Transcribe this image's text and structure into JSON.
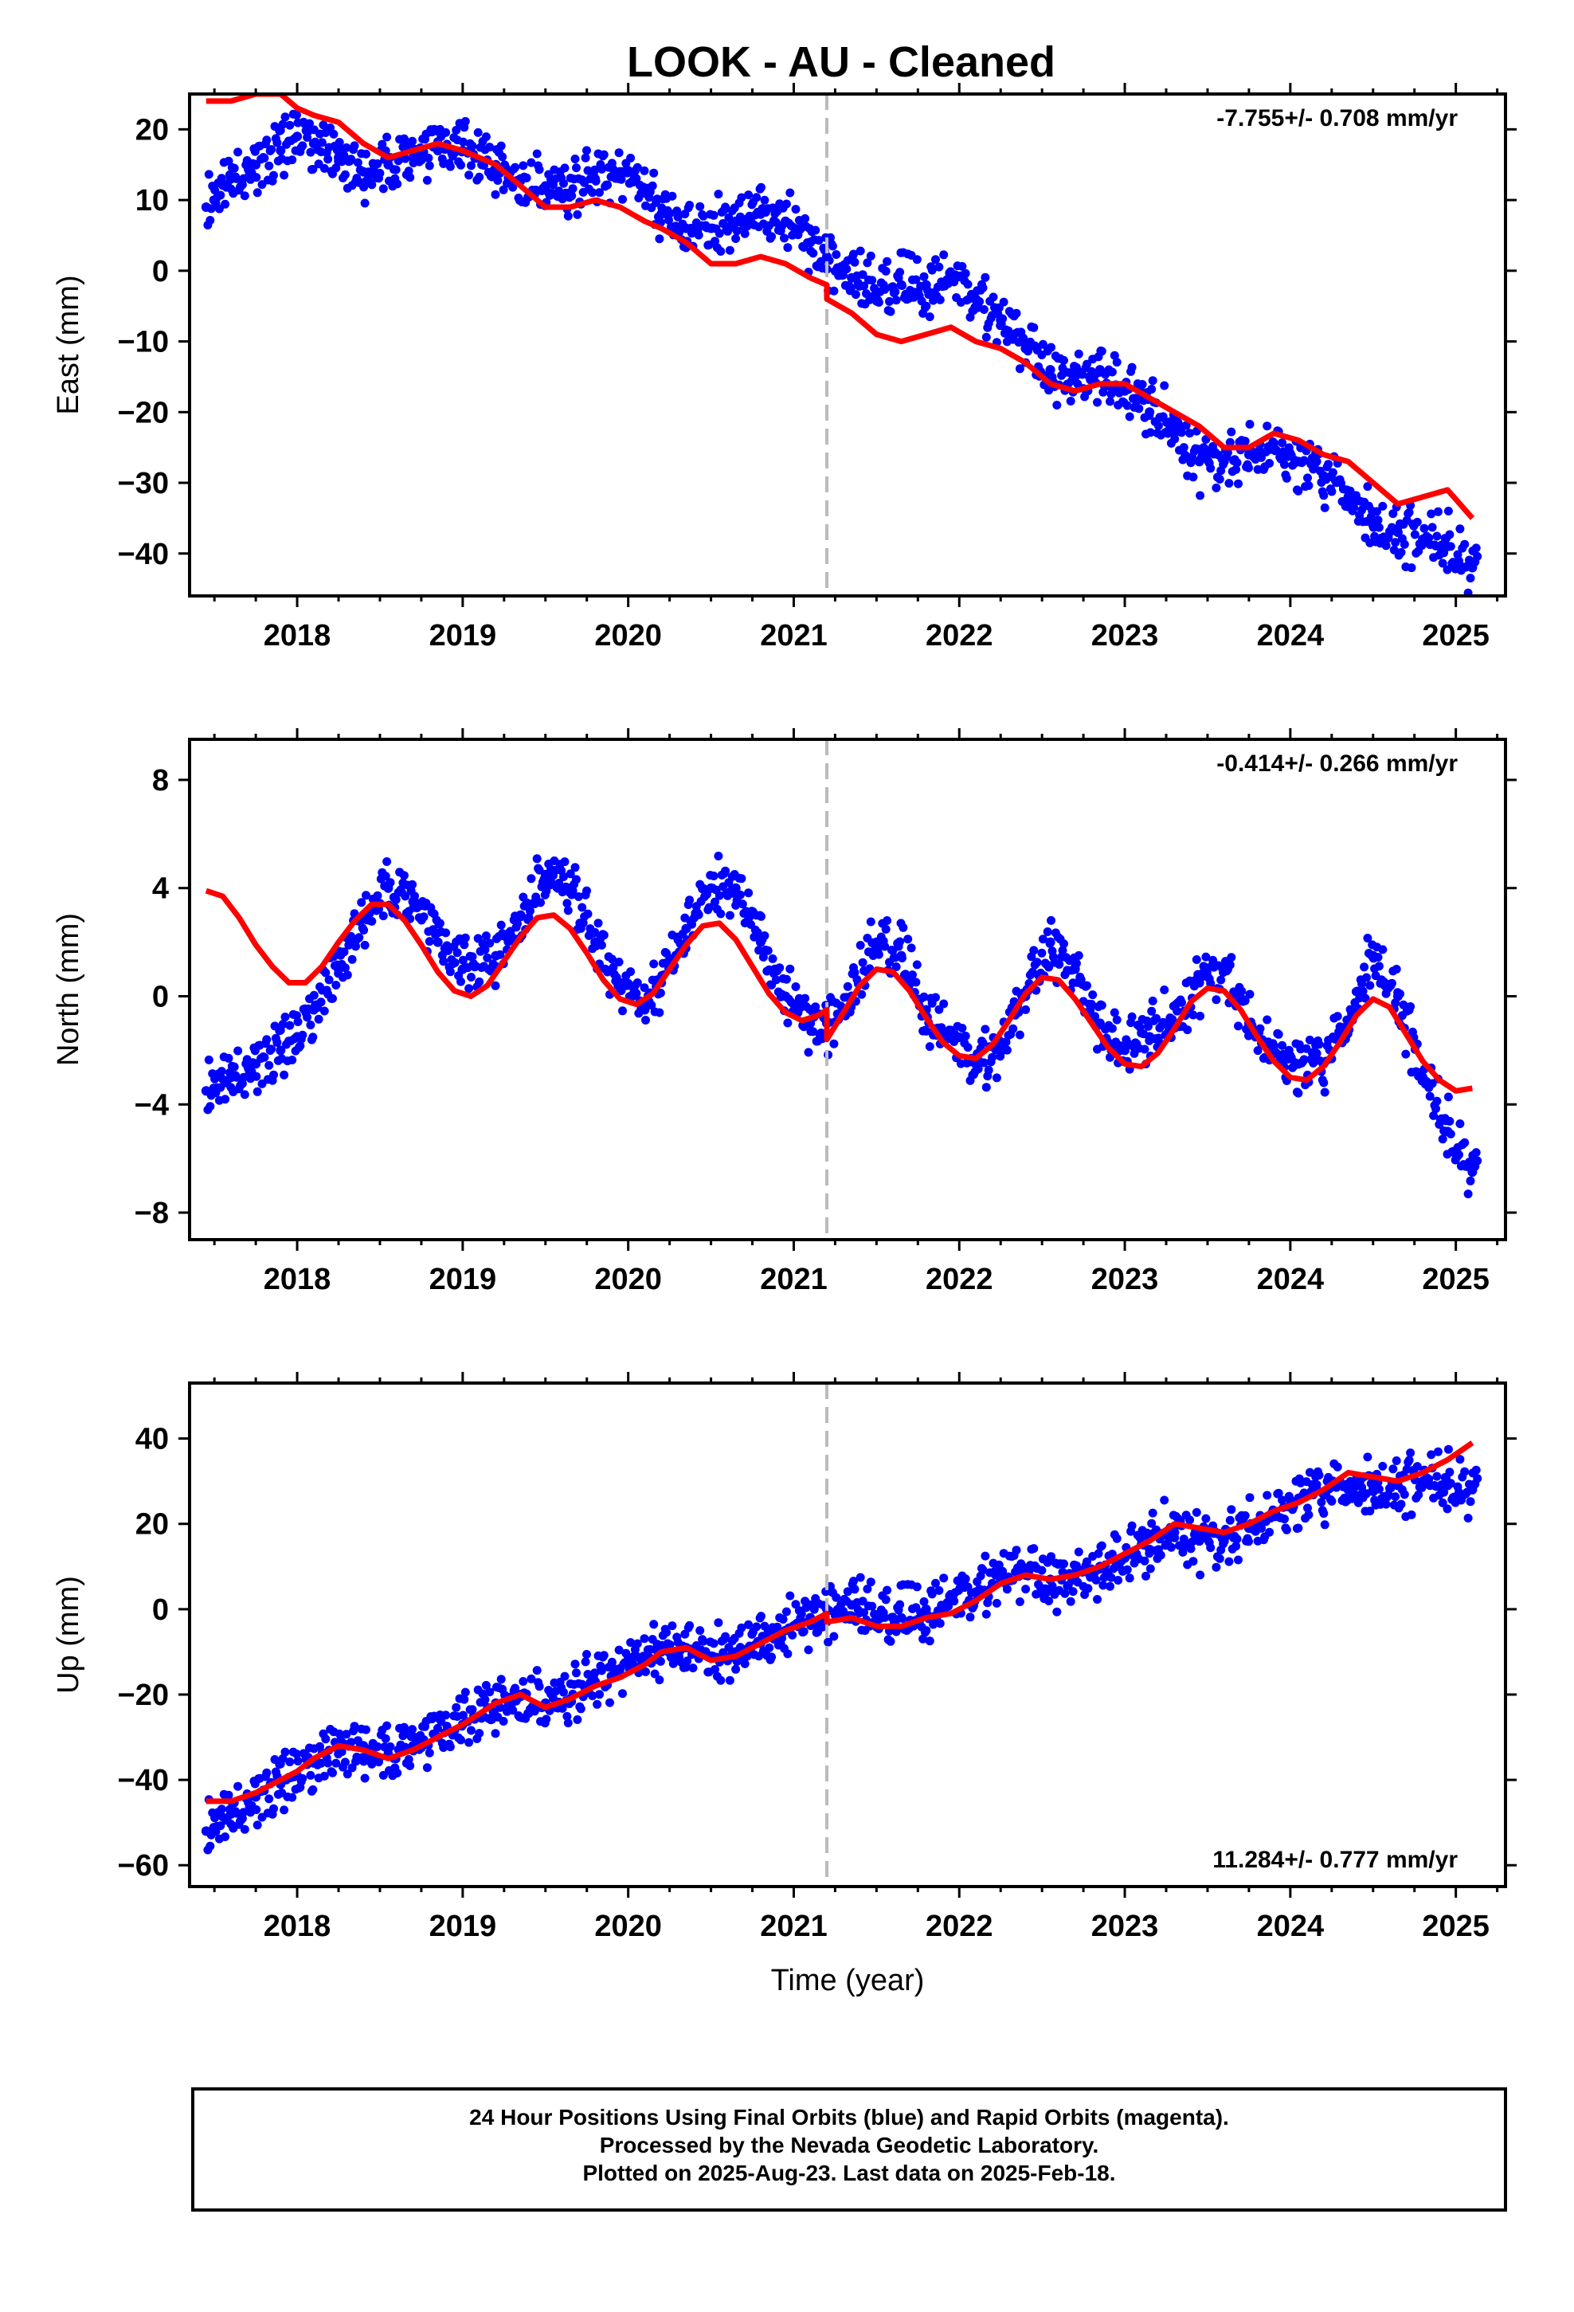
{
  "title": "LOOK  - AU - Cleaned",
  "colors": {
    "data": "#0000ff",
    "model": "#ff0000",
    "break_line": "#bbbbbb",
    "frame": "#000000"
  },
  "chart_data": [
    {
      "type": "scatter",
      "id": "east",
      "ylabel": "East (mm)",
      "xlabel": "",
      "xlim": [
        2017.35,
        2025.3
      ],
      "ylim": [
        -46,
        25
      ],
      "yticks": [
        20,
        10,
        0,
        -10,
        -20,
        -30,
        -40
      ],
      "xticks": [
        2018,
        2019,
        2020,
        2021,
        2022,
        2023,
        2024,
        2025
      ],
      "rate_label": "-7.755+/- 0.708 mm/yr",
      "rate_position": "top-right",
      "break_epoch": 2021.2,
      "series": [
        {
          "role": "data",
          "kind": "points",
          "x": [
            2017.45,
            2017.6,
            2017.75,
            2017.9,
            2018.0,
            2018.1,
            2018.25,
            2018.4,
            2018.55,
            2018.7,
            2018.85,
            2019.0,
            2019.2,
            2019.35,
            2019.5,
            2019.65,
            2019.8,
            2019.95,
            2020.1,
            2020.2,
            2020.35,
            2020.5,
            2020.65,
            2020.8,
            2020.95,
            2021.1,
            2021.2,
            2021.35,
            2021.5,
            2021.65,
            2021.8,
            2021.95,
            2022.1,
            2022.25,
            2022.4,
            2022.55,
            2022.7,
            2022.85,
            2023.0,
            2023.15,
            2023.3,
            2023.45,
            2023.6,
            2023.75,
            2023.9,
            2024.05,
            2024.2,
            2024.35,
            2024.5,
            2024.65,
            2024.8,
            2024.95,
            2025.1
          ],
          "y": [
            9,
            13,
            15,
            17,
            19,
            18,
            16,
            14,
            15,
            16,
            17,
            17,
            15,
            13,
            12,
            11,
            13,
            14,
            11,
            8,
            6,
            6,
            7,
            8,
            7,
            4,
            2,
            -1,
            -3,
            -2,
            -2,
            -1,
            -4,
            -7,
            -11,
            -14,
            -15,
            -14,
            -17,
            -20,
            -23,
            -27,
            -27,
            -26,
            -25,
            -27,
            -29,
            -32,
            -36,
            -37,
            -38,
            -39,
            -42
          ]
        },
        {
          "role": "model",
          "kind": "line",
          "x": [
            2017.45,
            2017.6,
            2017.75,
            2017.9,
            2018.0,
            2018.1,
            2018.25,
            2018.4,
            2018.55,
            2018.7,
            2018.85,
            2019.0,
            2019.2,
            2019.35,
            2019.5,
            2019.65,
            2019.8,
            2019.95,
            2020.1,
            2020.2,
            2020.35,
            2020.5,
            2020.65,
            2020.8,
            2020.95,
            2021.1,
            2021.2,
            2021.2,
            2021.35,
            2021.5,
            2021.65,
            2021.8,
            2021.95,
            2022.1,
            2022.25,
            2022.4,
            2022.55,
            2022.7,
            2022.85,
            2023.0,
            2023.15,
            2023.3,
            2023.45,
            2023.6,
            2023.75,
            2023.9,
            2024.05,
            2024.2,
            2024.35,
            2024.5,
            2024.65,
            2024.8,
            2024.95,
            2025.1
          ],
          "y": [
            24,
            24,
            25,
            25,
            23,
            22,
            21,
            18,
            16,
            17,
            18,
            17,
            15,
            12,
            9,
            9,
            10,
            9,
            7,
            6,
            4,
            1,
            1,
            2,
            1,
            -1,
            -2,
            -4,
            -6,
            -9,
            -10,
            -9,
            -8,
            -10,
            -11,
            -13,
            -16,
            -17,
            -16,
            -16,
            -18,
            -20,
            -22,
            -25,
            -25,
            -23,
            -24,
            -26,
            -27,
            -30,
            -33,
            -32,
            -31,
            -35
          ]
        }
      ]
    },
    {
      "type": "scatter",
      "id": "north",
      "ylabel": "North (mm)",
      "xlabel": "",
      "xlim": [
        2017.35,
        2025.3
      ],
      "ylim": [
        -9,
        9.5
      ],
      "yticks": [
        8,
        4,
        0,
        -4,
        -8
      ],
      "xticks": [
        2018,
        2019,
        2020,
        2021,
        2022,
        2023,
        2024,
        2025
      ],
      "rate_label": "-0.414+/- 0.266 mm/yr",
      "rate_position": "top-right",
      "break_epoch": 2021.2,
      "series": [
        {
          "role": "data",
          "kind": "points",
          "x": [
            2017.45,
            2017.6,
            2017.75,
            2017.9,
            2018.0,
            2018.1,
            2018.25,
            2018.4,
            2018.55,
            2018.7,
            2018.85,
            2019.0,
            2019.2,
            2019.35,
            2019.5,
            2019.65,
            2019.8,
            2019.95,
            2020.1,
            2020.2,
            2020.35,
            2020.5,
            2020.65,
            2020.8,
            2020.95,
            2021.1,
            2021.2,
            2021.35,
            2021.5,
            2021.65,
            2021.8,
            2021.95,
            2022.1,
            2022.25,
            2022.4,
            2022.55,
            2022.7,
            2022.85,
            2023.0,
            2023.15,
            2023.3,
            2023.45,
            2023.6,
            2023.75,
            2023.9,
            2024.05,
            2024.2,
            2024.35,
            2024.5,
            2024.65,
            2024.8,
            2024.95,
            2025.1
          ],
          "y": [
            -3.5,
            -3,
            -2.5,
            -2,
            -1.5,
            -0.5,
            1,
            3,
            4,
            3.5,
            2,
            1,
            1.5,
            3,
            4.5,
            4,
            2,
            0.5,
            -0.5,
            0.5,
            2.5,
            4,
            4,
            2,
            0,
            -1,
            -1,
            0,
            2,
            1.5,
            -0.5,
            -1.5,
            -2.5,
            -2,
            0,
            2,
            1,
            -1,
            -2,
            -1.5,
            -1,
            0.5,
            1,
            -1,
            -2,
            -2.5,
            -2.5,
            -1,
            1.5,
            0,
            -3,
            -5,
            -6.5
          ]
        },
        {
          "role": "model",
          "kind": "line",
          "x": [
            2017.45,
            2017.55,
            2017.65,
            2017.75,
            2017.85,
            2017.95,
            2018.05,
            2018.15,
            2018.25,
            2018.35,
            2018.45,
            2018.55,
            2018.65,
            2018.75,
            2018.85,
            2018.95,
            2019.05,
            2019.15,
            2019.25,
            2019.35,
            2019.45,
            2019.55,
            2019.65,
            2019.75,
            2019.85,
            2019.95,
            2020.05,
            2020.15,
            2020.25,
            2020.35,
            2020.45,
            2020.55,
            2020.65,
            2020.75,
            2020.85,
            2020.95,
            2021.05,
            2021.15,
            2021.2,
            2021.2,
            2021.3,
            2021.4,
            2021.5,
            2021.6,
            2021.7,
            2021.8,
            2021.9,
            2022.0,
            2022.1,
            2022.2,
            2022.3,
            2022.4,
            2022.5,
            2022.6,
            2022.7,
            2022.8,
            2022.9,
            2023.0,
            2023.1,
            2023.2,
            2023.3,
            2023.4,
            2023.5,
            2023.6,
            2023.7,
            2023.8,
            2023.9,
            2024.0,
            2024.1,
            2024.2,
            2024.3,
            2024.4,
            2024.5,
            2024.6,
            2024.7,
            2024.8,
            2024.9,
            2025.0,
            2025.1
          ],
          "y": [
            3.9,
            3.7,
            2.9,
            1.9,
            1.1,
            0.5,
            0.5,
            1.1,
            2,
            2.8,
            3.4,
            3.4,
            2.8,
            1.9,
            0.9,
            0.2,
            0,
            0.4,
            1.3,
            2.2,
            2.9,
            3,
            2.5,
            1.6,
            0.6,
            -0.1,
            -0.3,
            0.1,
            1,
            1.9,
            2.6,
            2.7,
            2.1,
            1.1,
            0.1,
            -0.6,
            -0.9,
            -0.7,
            -0.5,
            -1.6,
            -0.6,
            0.4,
            1,
            0.9,
            0.2,
            -0.8,
            -1.7,
            -2.2,
            -2.3,
            -1.8,
            -0.9,
            0.1,
            0.7,
            0.6,
            -0.1,
            -1,
            -1.9,
            -2.5,
            -2.6,
            -2.1,
            -1.2,
            -0.2,
            0.3,
            0.2,
            -0.5,
            -1.5,
            -2.4,
            -3,
            -3.1,
            -2.6,
            -1.7,
            -0.7,
            -0.1,
            -0.4,
            -1.4,
            -2.4,
            -3.1,
            -3.5,
            -3.4
          ]
        }
      ]
    },
    {
      "type": "scatter",
      "id": "up",
      "ylabel": "Up (mm)",
      "xlabel": "Time (year)",
      "xlim": [
        2017.35,
        2025.3
      ],
      "ylim": [
        -65,
        53
      ],
      "yticks": [
        40,
        20,
        0,
        -20,
        -40,
        -60
      ],
      "xticks": [
        2018,
        2019,
        2020,
        2021,
        2022,
        2023,
        2024,
        2025
      ],
      "rate_label": "11.284+/- 0.777 mm/yr",
      "rate_position": "bottom-right",
      "break_epoch": 2021.2,
      "series": [
        {
          "role": "data",
          "kind": "points",
          "x": [
            2017.45,
            2017.6,
            2017.75,
            2017.9,
            2018.0,
            2018.1,
            2018.25,
            2018.4,
            2018.55,
            2018.7,
            2018.85,
            2019.0,
            2019.2,
            2019.35,
            2019.5,
            2019.65,
            2019.8,
            2019.95,
            2020.1,
            2020.2,
            2020.35,
            2020.5,
            2020.65,
            2020.8,
            2020.95,
            2021.1,
            2021.2,
            2021.35,
            2021.5,
            2021.65,
            2021.8,
            2021.95,
            2022.1,
            2022.25,
            2022.4,
            2022.55,
            2022.7,
            2022.85,
            2023.0,
            2023.15,
            2023.3,
            2023.45,
            2023.6,
            2023.75,
            2023.9,
            2024.05,
            2024.2,
            2024.35,
            2024.5,
            2024.65,
            2024.8,
            2024.95,
            2025.1
          ],
          "y": [
            -52,
            -48,
            -44,
            -41,
            -39,
            -36,
            -33,
            -32,
            -34,
            -32,
            -30,
            -27,
            -22,
            -20,
            -22,
            -21,
            -17,
            -14,
            -12,
            -10,
            -9,
            -11,
            -10,
            -8,
            -5,
            -2,
            0,
            1,
            -2,
            -2,
            0,
            2,
            4,
            8,
            8,
            7,
            8,
            10,
            12,
            14,
            18,
            16,
            16,
            19,
            22,
            26,
            27,
            28,
            28,
            29,
            30,
            29,
            28
          ]
        },
        {
          "role": "model",
          "kind": "line",
          "x": [
            2017.45,
            2017.6,
            2017.75,
            2017.9,
            2018.0,
            2018.1,
            2018.25,
            2018.4,
            2018.55,
            2018.7,
            2018.85,
            2019.0,
            2019.2,
            2019.35,
            2019.5,
            2019.65,
            2019.8,
            2019.95,
            2020.1,
            2020.2,
            2020.35,
            2020.5,
            2020.65,
            2020.8,
            2020.95,
            2021.1,
            2021.2,
            2021.2,
            2021.35,
            2021.5,
            2021.65,
            2021.8,
            2021.95,
            2022.1,
            2022.25,
            2022.4,
            2022.55,
            2022.7,
            2022.85,
            2023.0,
            2023.15,
            2023.3,
            2023.45,
            2023.6,
            2023.75,
            2023.9,
            2024.05,
            2024.2,
            2024.35,
            2024.5,
            2024.65,
            2024.8,
            2024.95,
            2025.1
          ],
          "y": [
            -45,
            -45,
            -43,
            -40,
            -38,
            -35,
            -32,
            -33,
            -35,
            -33,
            -30,
            -27,
            -22,
            -20,
            -23,
            -21,
            -18,
            -16,
            -13,
            -10,
            -9,
            -12,
            -11,
            -8,
            -5,
            -3,
            -1,
            -3,
            -2,
            -4,
            -4,
            -2,
            -1,
            2,
            6,
            8,
            7,
            8,
            10,
            13,
            16,
            20,
            19,
            18,
            20,
            23,
            25,
            28,
            32,
            31,
            30,
            32,
            35,
            39
          ]
        }
      ]
    }
  ],
  "caption": {
    "line1": "24 Hour Positions Using Final Orbits (blue) and Rapid Orbits (magenta).",
    "line2": "Processed by the Nevada Geodetic Laboratory.",
    "line3": "Plotted on 2025-Aug-23. Last data on 2025-Feb-18."
  }
}
